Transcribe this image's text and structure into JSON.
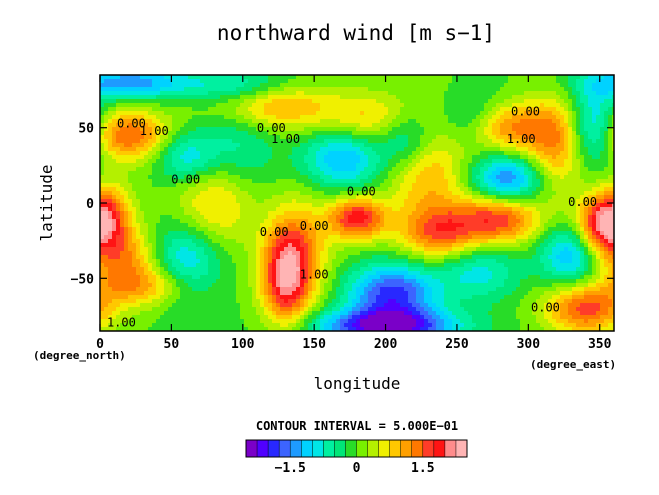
{
  "chart_data": {
    "type": "heatmap",
    "title": "northward wind [m s−1]",
    "xlabel": "longitude",
    "ylabel": "latitude",
    "x_units_label": "(degree_east)",
    "y_units_label": "(degree_north)",
    "xlim": [
      0,
      360
    ],
    "ylim": [
      -85,
      85
    ],
    "x_ticks": [
      0,
      50,
      100,
      150,
      200,
      250,
      300,
      350
    ],
    "x_tick_labels": [
      "0",
      "50",
      "100",
      "150",
      "200",
      "250",
      "300",
      "350"
    ],
    "y_ticks": [
      -50,
      0,
      50
    ],
    "y_tick_labels": [
      "−50",
      "0",
      "50"
    ],
    "contour_interval_text": "CONTOUR INTERVAL = 5.000E−01",
    "colorbar": {
      "levels": [
        -2.5,
        -2.25,
        -2.0,
        -1.75,
        -1.5,
        -1.25,
        -1.0,
        -0.75,
        -0.5,
        -0.25,
        0,
        0.25,
        0.5,
        0.75,
        1.0,
        1.25,
        1.5,
        1.75,
        2.0,
        2.25
      ],
      "colors": [
        "#7a00c8",
        "#5000ff",
        "#2828ff",
        "#3c64ff",
        "#1e9bff",
        "#00d2ff",
        "#00e6e6",
        "#00f0a0",
        "#00e678",
        "#28dc28",
        "#78f000",
        "#b4f000",
        "#f0f000",
        "#ffc800",
        "#ffa000",
        "#ff7800",
        "#ff3c28",
        "#ff1414",
        "#ff8c8c",
        "#ffb4b4"
      ],
      "tick_values": [
        -1.5,
        0,
        1.5
      ],
      "tick_labels": [
        "−1.5",
        "0",
        "1.5"
      ]
    },
    "contour_labels": [
      {
        "text": "0.00",
        "lon": 22,
        "lat": 50
      },
      {
        "text": "1.00",
        "lon": 38,
        "lat": 45
      },
      {
        "text": "0.00",
        "lon": 60,
        "lat": 13
      },
      {
        "text": "0.00",
        "lon": 120,
        "lat": 47
      },
      {
        "text": "1.00",
        "lon": 130,
        "lat": 40
      },
      {
        "text": "0.00",
        "lon": 122,
        "lat": -22
      },
      {
        "text": "1.00",
        "lon": 150,
        "lat": -50
      },
      {
        "text": "0.00",
        "lon": 150,
        "lat": -18
      },
      {
        "text": "0.00",
        "lon": 183,
        "lat": 5
      },
      {
        "text": "0.00",
        "lon": 298,
        "lat": 58
      },
      {
        "text": "1.00",
        "lon": 295,
        "lat": 40
      },
      {
        "text": "0.00",
        "lon": 338,
        "lat": -2
      },
      {
        "text": "0.00",
        "lon": 312,
        "lat": -72
      },
      {
        "text": "1.00",
        "lon": 15,
        "lat": -82
      }
    ],
    "field_features": [
      {
        "lon": 20,
        "lat": 45,
        "amp": 1.5,
        "w": 20,
        "h": 12
      },
      {
        "lon": 5,
        "lat": -8,
        "amp": 1.5,
        "w": 12,
        "h": 14
      },
      {
        "lon": 15,
        "lat": -35,
        "amp": 1.2,
        "w": 18,
        "h": 14
      },
      {
        "lon": 35,
        "lat": -55,
        "amp": 1.1,
        "w": 25,
        "h": 10
      },
      {
        "lon": 60,
        "lat": 30,
        "amp": -1.0,
        "w": 15,
        "h": 12
      },
      {
        "lon": 60,
        "lat": -40,
        "amp": -1.2,
        "w": 18,
        "h": 20
      },
      {
        "lon": 80,
        "lat": 0,
        "amp": 1.0,
        "w": 20,
        "h": 22
      },
      {
        "lon": 95,
        "lat": 40,
        "amp": -0.7,
        "w": 20,
        "h": 25
      },
      {
        "lon": 130,
        "lat": -50,
        "amp": 1.9,
        "w": 12,
        "h": 22
      },
      {
        "lon": 140,
        "lat": -30,
        "amp": 1.0,
        "w": 15,
        "h": 25
      },
      {
        "lon": 120,
        "lat": 65,
        "amp": 1.2,
        "w": 30,
        "h": 12
      },
      {
        "lon": 170,
        "lat": 30,
        "amp": -1.3,
        "w": 20,
        "h": 15
      },
      {
        "lon": 190,
        "lat": 55,
        "amp": 0.9,
        "w": 25,
        "h": 12
      },
      {
        "lon": 180,
        "lat": -10,
        "amp": 1.9,
        "w": 14,
        "h": 10
      },
      {
        "lon": 205,
        "lat": -60,
        "amp": -1.9,
        "w": 22,
        "h": 14
      },
      {
        "lon": 200,
        "lat": -82,
        "amp": -2.2,
        "w": 35,
        "h": 8
      },
      {
        "lon": 230,
        "lat": 20,
        "amp": 1.0,
        "w": 20,
        "h": 30
      },
      {
        "lon": 215,
        "lat": 45,
        "amp": -1.1,
        "w": 14,
        "h": 14
      },
      {
        "lon": 240,
        "lat": -20,
        "amp": 1.3,
        "w": 20,
        "h": 12
      },
      {
        "lon": 260,
        "lat": 55,
        "amp": -0.8,
        "w": 18,
        "h": 14
      },
      {
        "lon": 285,
        "lat": 15,
        "amp": -1.6,
        "w": 18,
        "h": 12
      },
      {
        "lon": 285,
        "lat": 50,
        "amp": 1.4,
        "w": 20,
        "h": 12
      },
      {
        "lon": 280,
        "lat": -10,
        "amp": 1.7,
        "w": 20,
        "h": 12
      },
      {
        "lon": 265,
        "lat": -45,
        "amp": -0.9,
        "w": 20,
        "h": 14
      },
      {
        "lon": 320,
        "lat": 40,
        "amp": 1.2,
        "w": 15,
        "h": 22
      },
      {
        "lon": 345,
        "lat": 50,
        "amp": -1.3,
        "w": 12,
        "h": 18
      },
      {
        "lon": 350,
        "lat": -15,
        "amp": 1.7,
        "w": 12,
        "h": 14
      },
      {
        "lon": 330,
        "lat": -35,
        "amp": -1.3,
        "w": 15,
        "h": 14
      },
      {
        "lon": 340,
        "lat": -70,
        "amp": 1.6,
        "w": 20,
        "h": 12
      },
      {
        "lon": 20,
        "lat": 80,
        "amp": -1.4,
        "w": 30,
        "h": 8
      },
      {
        "lon": 100,
        "lat": 78,
        "amp": -0.8,
        "w": 30,
        "h": 8
      }
    ]
  }
}
